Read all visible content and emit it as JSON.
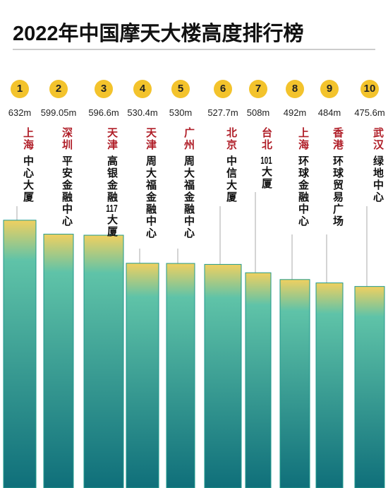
{
  "chart_data": {
    "type": "skyscraper",
    "title": "2022年中国摩天大楼高度排行榜",
    "ranks": [
      1,
      2,
      3,
      4,
      5,
      6,
      7,
      8,
      9,
      10
    ],
    "cities": [
      "上海",
      "深圳",
      "天津",
      "天津",
      "广州",
      "北京",
      "台北",
      "上海",
      "香港",
      "武汉"
    ],
    "names": [
      "中心大厦",
      "平安金融中心",
      "高银金融117大厦",
      "周大福金融中心",
      "周大福金融中心",
      "中信大厦",
      "101大厦",
      "环球金融中心",
      "环球贸易广场",
      "绿地中心"
    ],
    "values": [
      632,
      599.05,
      596.6,
      530.4,
      530,
      527.7,
      508,
      492,
      484,
      475.6
    ],
    "value_labels": [
      "632m",
      "599.05m",
      "596.6m",
      "530.4m",
      "530m",
      "527.7m",
      "508m",
      "492m",
      "484m",
      "475.6m"
    ],
    "color": "#1f9a8c",
    "city_color": "#b01e28",
    "rank_color": "#f3c32c"
  }
}
